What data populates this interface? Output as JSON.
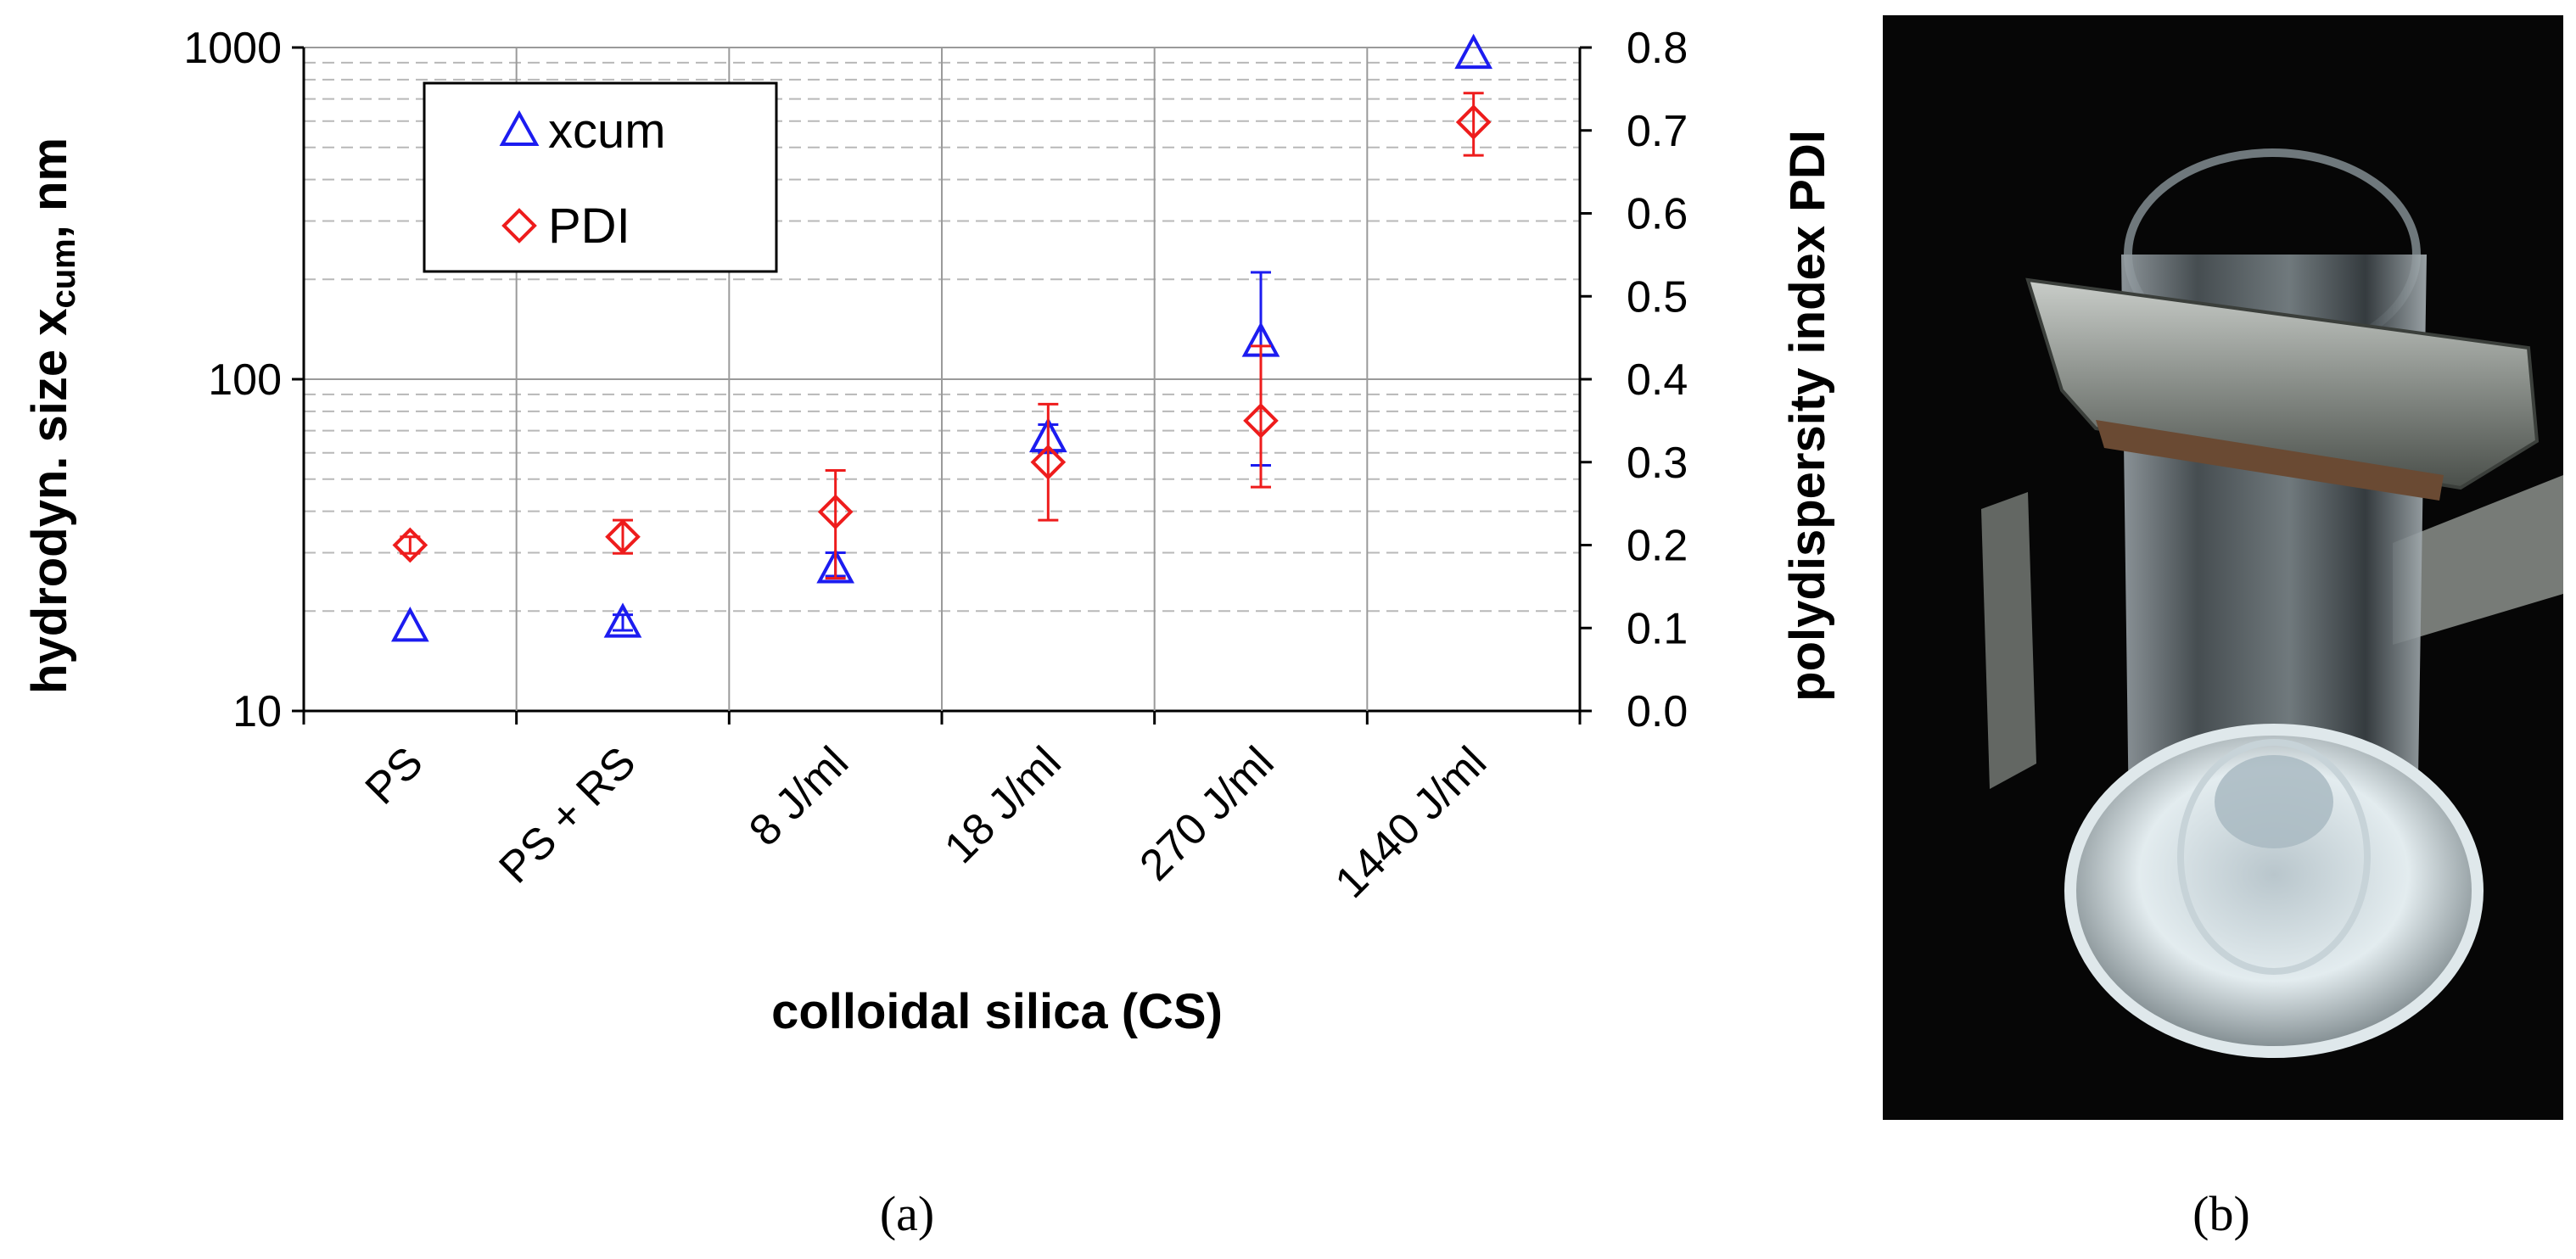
{
  "figure_labels": {
    "panel_a": "(a)",
    "panel_b": "(b)"
  },
  "photo": {
    "description_name": "glass vial with colloidal silica held by metal clamp"
  },
  "colors": {
    "xcum": "#1c1cf0",
    "pdi": "#ee1c1c",
    "grid_major": "#9a9a9a",
    "grid_minor": "#b8b8b8",
    "photo_bg": "#060606"
  },
  "chart_data": {
    "type": "scatter",
    "title": "",
    "xlabel": "colloidal silica (CS)",
    "ylabel_left": "hydrodyn. size x",
    "ylabel_left_sub": "cum",
    "ylabel_left_suffix": ", nm",
    "ylabel_right": "polydispersity index PDI",
    "y_left_scale": "log",
    "y_left_range": [
      10,
      1000
    ],
    "y_left_ticks": [
      "10",
      "100",
      "1000"
    ],
    "y_right_range": [
      0.0,
      0.8
    ],
    "y_right_ticks": [
      "0.0",
      "0.1",
      "0.2",
      "0.3",
      "0.4",
      "0.5",
      "0.6",
      "0.7",
      "0.8"
    ],
    "categories": [
      "PS",
      "PS + RS",
      "8 J/ml",
      "18 J/ml",
      "270 J/ml",
      "1440 J/ml"
    ],
    "legend_position": "top-left",
    "series": [
      {
        "name": "xcum",
        "axis": "left",
        "marker": "triangle",
        "values": [
          18,
          18.5,
          27,
          67,
          130,
          960
        ],
        "err_low": [
          null,
          17.5,
          25.5,
          60,
          55,
          null
        ],
        "err_high": [
          null,
          19.5,
          30,
          73,
          210,
          null
        ]
      },
      {
        "name": "PDI",
        "axis": "right",
        "marker": "diamond",
        "values": [
          0.2,
          0.21,
          0.24,
          0.3,
          0.35,
          0.71
        ],
        "err_low": [
          0.19,
          0.19,
          0.16,
          0.23,
          0.27,
          0.67
        ],
        "err_high": [
          0.21,
          0.23,
          0.29,
          0.37,
          0.44,
          0.745
        ]
      }
    ]
  }
}
